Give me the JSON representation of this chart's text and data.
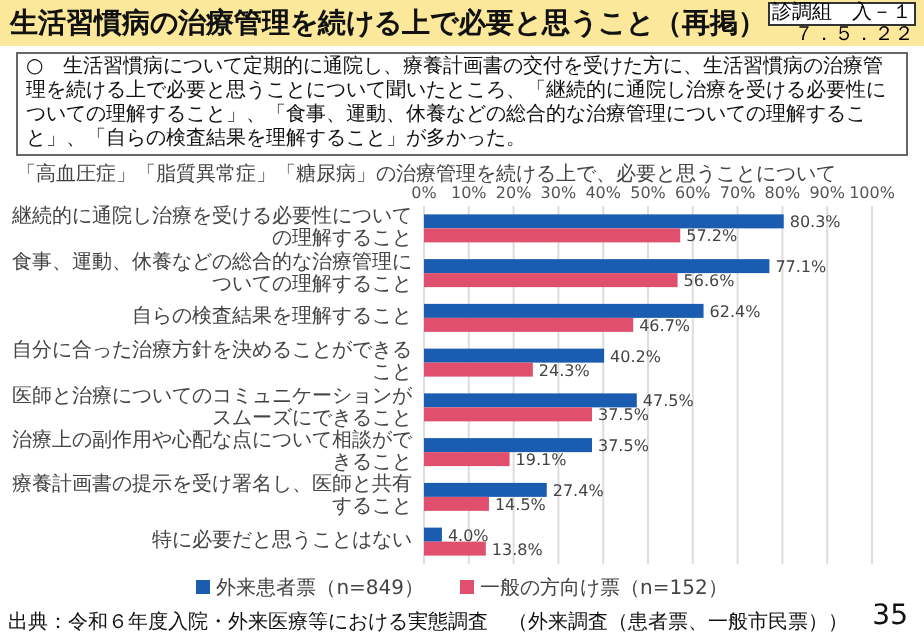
{
  "chart_data": {
    "type": "bar",
    "orientation": "horizontal",
    "title": "生活習慣病の治療管理を続ける上で必要と思うこと（再掲）",
    "subtitle": "「高血圧症」「脂質異常症」「糖尿病」の治療管理を続ける上で、必要と思うことについて",
    "annotations": [
      "診調組　入－１",
      "７．５．２２",
      "○　生活習慣病について定期的に通院し、療養計画書の交付を受けた方に、生活習慣病の治療管理を続ける上で必要と思うことについて聞いたところ、「継続的に通院し治療を受ける必要性についての理解すること」、「食事、運動、休養などの総合的な治療管理についての理解すること」、「自らの検査結果を理解すること」が多かった。",
      "出典：令和６年度入院・外来医療等における実態調査　（外来調査（患者票、一般市民票））",
      "35"
    ],
    "categories": [
      "継続的に通院し治療を受ける必要性についての理解すること",
      "食事、運動、休養などの総合的な治療管理についての理解すること",
      "自らの検査結果を理解すること",
      "自分に合った治療方針を決めることができること",
      "医師と治療についてのコミュニケーションがスムーズにできること",
      "治療上の副作用や心配な点について相談ができること",
      "療養計画書の提示を受け署名し、医師と共有すること",
      "特に必要だと思うことはない"
    ],
    "series": [
      {
        "name": "外来患者票（n=849）",
        "color": "#1a5cb0",
        "values": [
          80.3,
          77.1,
          62.4,
          40.2,
          47.5,
          37.5,
          27.4,
          4.0
        ],
        "value_labels": [
          "80.3%",
          "77.1%",
          "62.4%",
          "40.2%",
          "47.5%",
          "37.5%",
          "27.4%",
          "4.0%"
        ]
      },
      {
        "name": "一般の方向け票（n=152）",
        "color": "#e0506e",
        "values": [
          57.2,
          56.6,
          46.7,
          24.3,
          37.5,
          19.1,
          14.5,
          13.8
        ],
        "value_labels": [
          "57.2%",
          "56.6%",
          "46.7%",
          "24.3%",
          "37.5%",
          "19.1%",
          "14.5%",
          "13.8%"
        ]
      }
    ],
    "xlim": [
      0,
      100
    ],
    "xticks": [
      {
        "value": 0,
        "label": "0%"
      },
      {
        "value": 10,
        "label": "10%"
      },
      {
        "value": 20,
        "label": "20%"
      },
      {
        "value": 30,
        "label": "30%"
      },
      {
        "value": 40,
        "label": "40%"
      },
      {
        "value": 50,
        "label": "50%"
      },
      {
        "value": 60,
        "label": "60%"
      },
      {
        "value": 70,
        "label": "70%"
      },
      {
        "value": 80,
        "label": "80%"
      },
      {
        "value": 90,
        "label": "90%"
      },
      {
        "value": 100,
        "label": "100%"
      }
    ],
    "grid": "x",
    "legend": "bottom"
  }
}
